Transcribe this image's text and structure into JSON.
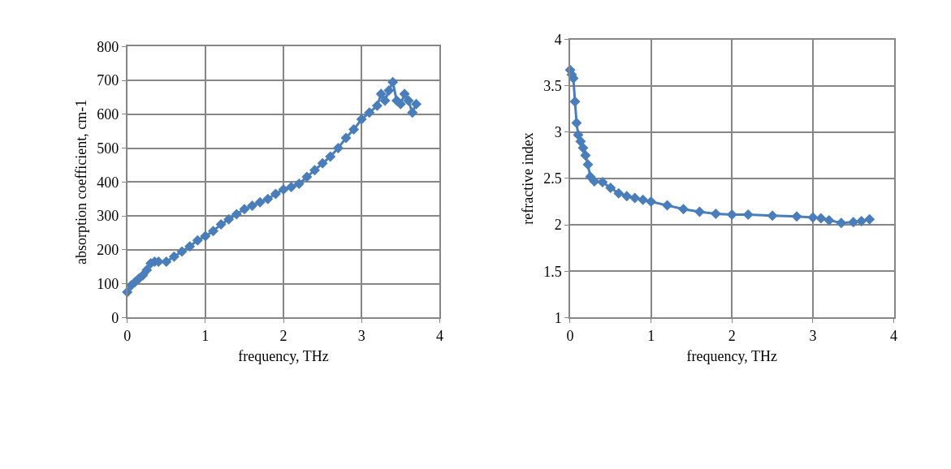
{
  "chart_data": [
    {
      "type": "line",
      "xlabel": "frequency, THz",
      "ylabel": "absorption coefficient, cm-1",
      "xlim": [
        0,
        4
      ],
      "xticks": [
        0,
        1,
        2,
        3,
        4
      ],
      "ylim": [
        0,
        800
      ],
      "yticks": [
        0,
        100,
        200,
        300,
        400,
        500,
        600,
        700,
        800
      ],
      "grid": true,
      "marker": "diamond",
      "line_style": "solid",
      "series": [
        {
          "color": "#4a7ebb",
          "x": [
            0,
            0.05,
            0.1,
            0.15,
            0.2,
            0.25,
            0.3,
            0.35,
            0.4,
            0.5,
            0.6,
            0.7,
            0.8,
            0.9,
            1.0,
            1.1,
            1.2,
            1.3,
            1.4,
            1.5,
            1.6,
            1.7,
            1.8,
            1.9,
            2.0,
            2.1,
            2.2,
            2.3,
            2.4,
            2.5,
            2.6,
            2.7,
            2.8,
            2.9,
            3.0,
            3.1,
            3.2,
            3.25,
            3.3,
            3.35,
            3.4,
            3.45,
            3.5,
            3.55,
            3.6,
            3.65,
            3.7
          ],
          "values": [
            75,
            95,
            105,
            115,
            125,
            140,
            160,
            165,
            165,
            165,
            180,
            195,
            210,
            228,
            240,
            255,
            275,
            290,
            305,
            320,
            330,
            340,
            350,
            365,
            378,
            385,
            395,
            415,
            435,
            455,
            475,
            500,
            530,
            555,
            585,
            605,
            625,
            660,
            640,
            670,
            695,
            640,
            630,
            660,
            640,
            605,
            630
          ]
        }
      ]
    },
    {
      "type": "line",
      "xlabel": "frequency, THz",
      "ylabel": "refractive index",
      "xlim": [
        0,
        4
      ],
      "xticks": [
        0,
        1,
        2,
        3,
        4
      ],
      "ylim": [
        1,
        4
      ],
      "yticks": [
        1,
        1.5,
        2,
        2.5,
        3,
        3.5,
        4
      ],
      "grid": true,
      "marker": "diamond",
      "line_style": "solid",
      "series": [
        {
          "color": "#4a7ebb",
          "x": [
            0,
            0.02,
            0.04,
            0.06,
            0.08,
            0.1,
            0.13,
            0.16,
            0.19,
            0.22,
            0.25,
            0.3,
            0.4,
            0.5,
            0.6,
            0.7,
            0.8,
            0.9,
            1.0,
            1.2,
            1.4,
            1.6,
            1.8,
            2.0,
            2.2,
            2.5,
            2.8,
            3.0,
            3.1,
            3.2,
            3.35,
            3.5,
            3.6,
            3.7
          ],
          "values": [
            3.67,
            3.62,
            3.58,
            3.33,
            3.1,
            2.97,
            2.9,
            2.83,
            2.75,
            2.65,
            2.52,
            2.47,
            2.46,
            2.4,
            2.34,
            2.31,
            2.29,
            2.27,
            2.25,
            2.21,
            2.17,
            2.14,
            2.12,
            2.11,
            2.11,
            2.1,
            2.09,
            2.08,
            2.07,
            2.05,
            2.02,
            2.03,
            2.04,
            2.06
          ]
        }
      ]
    }
  ]
}
